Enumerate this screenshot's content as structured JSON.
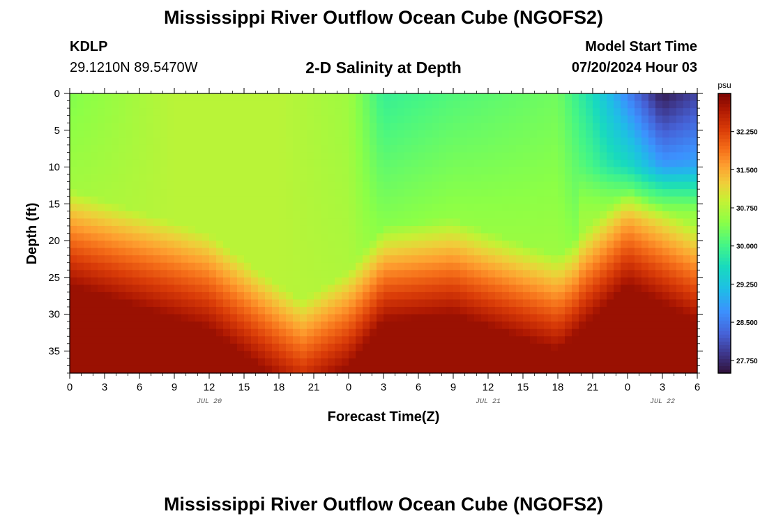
{
  "page": {
    "title": "Mississippi River Outflow Ocean Cube (NGOFS2)",
    "station_id": "KDLP",
    "station_coords": "29.1210N  89.5470W",
    "subtitle": "2-D Salinity at Depth",
    "start_label": "Model Start Time",
    "start_value": "07/20/2024 Hour 03",
    "title_repeat": "Mississippi River Outflow Ocean Cube (NGOFS2)"
  },
  "chart_data": {
    "type": "heatmap",
    "xlabel": "Forecast Time(Z)",
    "ylabel": "Depth (ft)",
    "x_hours_range": [
      0,
      54
    ],
    "x_tick_step_hours": 3,
    "x_tick_labels": [
      "0",
      "3",
      "6",
      "9",
      "12",
      "15",
      "18",
      "21",
      "0",
      "3",
      "6",
      "9",
      "12",
      "15",
      "18",
      "21",
      "0",
      "3",
      "6"
    ],
    "date_labels": [
      {
        "text": "JUL 20",
        "hour": 12
      },
      {
        "text": "JUL 21",
        "hour": 36
      },
      {
        "text": "JUL 22",
        "hour": 51
      }
    ],
    "ylim": [
      0,
      38
    ],
    "y_inverted": true,
    "y_ticks": [
      0,
      5,
      10,
      15,
      20,
      25,
      30,
      35
    ],
    "colorbar": {
      "unit": "psu",
      "vmin": 27.5,
      "vmax": 33.0,
      "ticks": [
        "27.750",
        "28.500",
        "29.250",
        "30.000",
        "30.750",
        "31.500",
        "32.250"
      ],
      "colormap": "turbo"
    },
    "field_description": {
      "mixed_layer_base_ft": [
        {
          "hour": 0,
          "depth": 17
        },
        {
          "hour": 6,
          "depth": 20
        },
        {
          "hour": 12,
          "depth": 23
        },
        {
          "hour": 18,
          "depth": 30
        },
        {
          "hour": 20,
          "depth": 32
        },
        {
          "hour": 24,
          "depth": 28
        },
        {
          "hour": 27,
          "depth": 22
        },
        {
          "hour": 33,
          "depth": 21
        },
        {
          "hour": 42,
          "depth": 26
        },
        {
          "hour": 48,
          "depth": 17
        },
        {
          "hour": 54,
          "depth": 22
        }
      ],
      "surface_salinity_psu": [
        {
          "hour": 0,
          "value": 30.4
        },
        {
          "hour": 9,
          "value": 30.8
        },
        {
          "hour": 18,
          "value": 30.8
        },
        {
          "hour": 24,
          "value": 30.6
        },
        {
          "hour": 27,
          "value": 29.9
        },
        {
          "hour": 33,
          "value": 30.1
        },
        {
          "hour": 42,
          "value": 30.3
        },
        {
          "hour": 45,
          "value": 29.6
        },
        {
          "hour": 51,
          "value": 27.6
        },
        {
          "hour": 54,
          "value": 28.0
        }
      ],
      "bottom_salinity_psu": 32.8
    }
  }
}
